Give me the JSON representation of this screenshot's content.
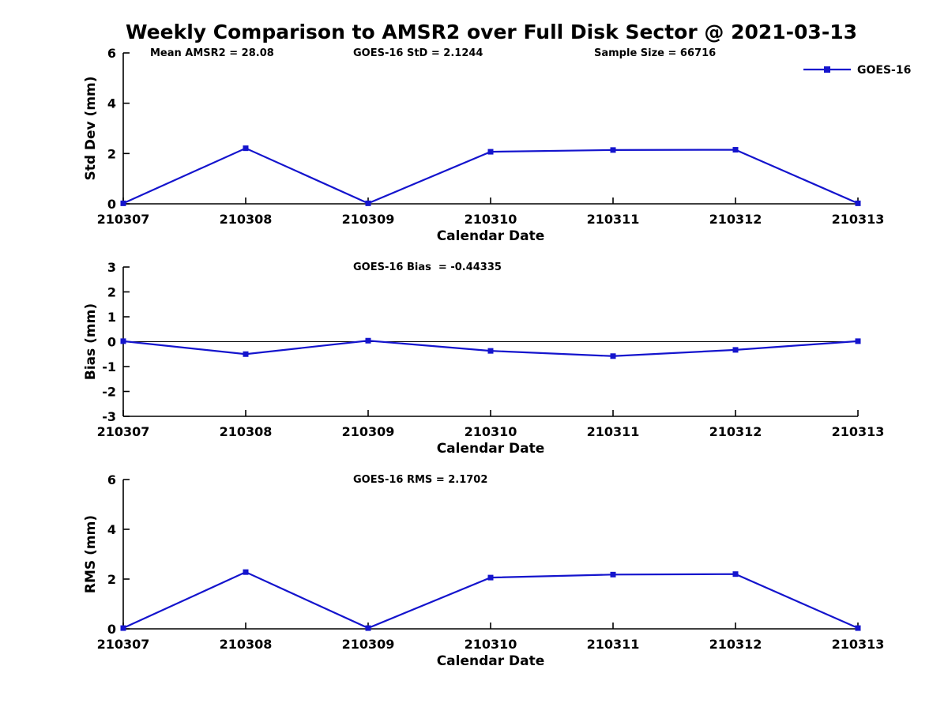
{
  "title": "Weekly Comparison to AMSR2 over Full Disk Sector @ 2021-03-13",
  "colors": {
    "series": "#1414cd",
    "axis": "#000000",
    "background": "#ffffff"
  },
  "legend": {
    "label": "GOES-16"
  },
  "stats": {
    "mean_amsr2": "28.08",
    "goes16_std": "2.1244",
    "sample_size": "66716",
    "goes16_bias": "-0.44335",
    "goes16_rms": "2.1702"
  },
  "chart_data": [
    {
      "type": "line",
      "name": "std-dev",
      "categories": [
        "210307",
        "210308",
        "210309",
        "210310",
        "210311",
        "210312",
        "210313"
      ],
      "series": [
        {
          "name": "GOES-16",
          "color": "#1414cd",
          "values": [
            0.02,
            2.21,
            0.02,
            2.07,
            2.14,
            2.15,
            0.02
          ]
        }
      ],
      "annotations": [
        "Mean AMSR2 = 28.08",
        "GOES-16 StD = 2.1244",
        "Sample Size = 66716"
      ],
      "xlabel": "Calendar Date",
      "ylabel": "Std Dev (mm)",
      "ylim": [
        0,
        6
      ],
      "yticks": [
        "0",
        "2",
        "4",
        "6"
      ],
      "zero_line": false,
      "grid": false,
      "legend": {
        "label": "GOES-16",
        "position": "top-right"
      }
    },
    {
      "type": "line",
      "name": "bias",
      "categories": [
        "210307",
        "210308",
        "210309",
        "210310",
        "210311",
        "210312",
        "210313"
      ],
      "series": [
        {
          "name": "GOES-16",
          "color": "#1414cd",
          "values": [
            0.02,
            -0.5,
            0.04,
            -0.37,
            -0.58,
            -0.33,
            0.02
          ]
        }
      ],
      "annotations": [
        "GOES-16 Bias  = -0.44335"
      ],
      "xlabel": "Calendar Date",
      "ylabel": "Bias (mm)",
      "ylim": [
        -3,
        3
      ],
      "yticks": [
        "-3",
        "-2",
        "-1",
        "0",
        "1",
        "2",
        "3"
      ],
      "zero_line": true,
      "grid": false,
      "legend": null
    },
    {
      "type": "line",
      "name": "rms",
      "categories": [
        "210307",
        "210308",
        "210309",
        "210310",
        "210311",
        "210312",
        "210313"
      ],
      "series": [
        {
          "name": "GOES-16",
          "color": "#1414cd",
          "values": [
            0.03,
            2.28,
            0.03,
            2.06,
            2.18,
            2.2,
            0.03
          ]
        }
      ],
      "annotations": [
        "GOES-16 RMS = 2.1702"
      ],
      "xlabel": "Calendar Date",
      "ylabel": "RMS (mm)",
      "ylim": [
        0,
        6
      ],
      "yticks": [
        "0",
        "2",
        "4",
        "6"
      ],
      "zero_line": false,
      "grid": false,
      "legend": null
    }
  ]
}
